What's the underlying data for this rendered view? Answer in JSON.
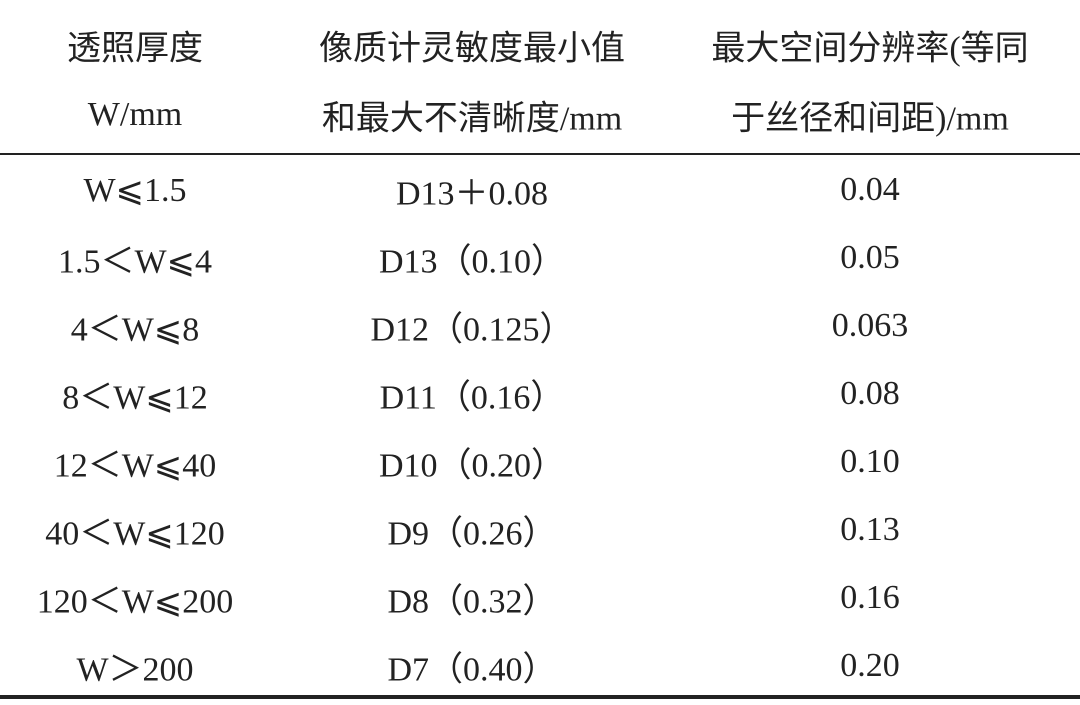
{
  "table": {
    "header": [
      [
        "透照厚度",
        "W/mm"
      ],
      [
        "像质计灵敏度最小值",
        "和最大不清晰度/mm"
      ],
      [
        "最大空间分辨率(等同",
        "于丝径和间距)/mm"
      ]
    ],
    "rows": [
      [
        "W⩽1.5",
        "D13＋0.08",
        "0.04"
      ],
      [
        "1.5＜W⩽4",
        "D13（0.10）",
        "0.05"
      ],
      [
        "4＜W⩽8",
        "D12（0.125）",
        "0.063"
      ],
      [
        "8＜W⩽12",
        "D11（0.16）",
        "0.08"
      ],
      [
        "12＜W⩽40",
        "D10（0.20）",
        "0.10"
      ],
      [
        "40＜W⩽120",
        "D9（0.26）",
        "0.13"
      ],
      [
        "120＜W⩽200",
        "D8（0.32）",
        "0.16"
      ],
      [
        "W＞200",
        "D7（0.40）",
        "0.20"
      ]
    ]
  }
}
